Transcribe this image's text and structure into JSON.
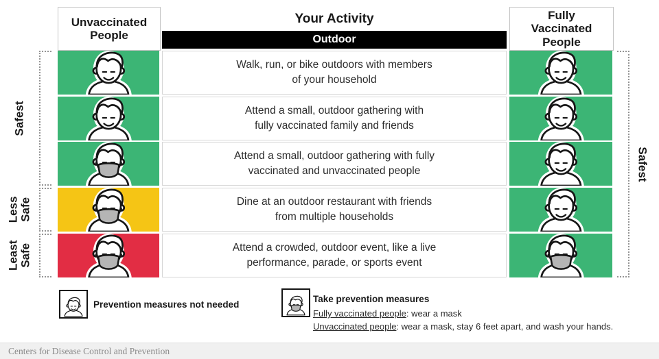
{
  "header": {
    "left": "Unvaccinated\nPeople",
    "center_title": "Your Activity",
    "center_sub": "Outdoor",
    "right": "Fully\nVaccinated\nPeople"
  },
  "side_labels": {
    "left_safest": "Safest",
    "left_less_safe": "Less\nSafe",
    "left_least_safe": "Least\nSafe",
    "right_safest": "Safest"
  },
  "colors": {
    "green": "#3cb575",
    "yellow": "#f5c515",
    "red": "#e22d44",
    "mask": "#b5b5b5",
    "bar": "#000000"
  },
  "rows": [
    {
      "activity": "Walk, run, or bike outdoors with members\nof your household",
      "unvaccinated": {
        "color": "green",
        "masked": false
      },
      "vaccinated": {
        "color": "green",
        "masked": false
      }
    },
    {
      "activity": "Attend a small, outdoor gathering with\nfully vaccinated family and friends",
      "unvaccinated": {
        "color": "green",
        "masked": false
      },
      "vaccinated": {
        "color": "green",
        "masked": false
      }
    },
    {
      "activity": "Attend a small, outdoor gathering with fully\nvaccinated and unvaccinated people",
      "unvaccinated": {
        "color": "green",
        "masked": true
      },
      "vaccinated": {
        "color": "green",
        "masked": false
      }
    },
    {
      "activity": "Dine at an outdoor restaurant with friends\nfrom multiple households",
      "unvaccinated": {
        "color": "yellow",
        "masked": true
      },
      "vaccinated": {
        "color": "green",
        "masked": false
      }
    },
    {
      "activity": "Attend a crowded, outdoor event, like a live\nperformance, parade, or sports event",
      "unvaccinated": {
        "color": "red",
        "masked": true
      },
      "vaccinated": {
        "color": "green",
        "masked": true
      }
    }
  ],
  "legend": {
    "no_measures_label": "Prevention measures not needed",
    "measures_title": "Take prevention measures",
    "line1_label": "Fully vaccinated people",
    "line1_rest": ": wear a mask",
    "line2_label": "Unvaccinated people",
    "line2_rest": ": wear a mask, stay 6 feet apart, and wash your hands."
  },
  "footer": "Centers for Disease Control and Prevention"
}
